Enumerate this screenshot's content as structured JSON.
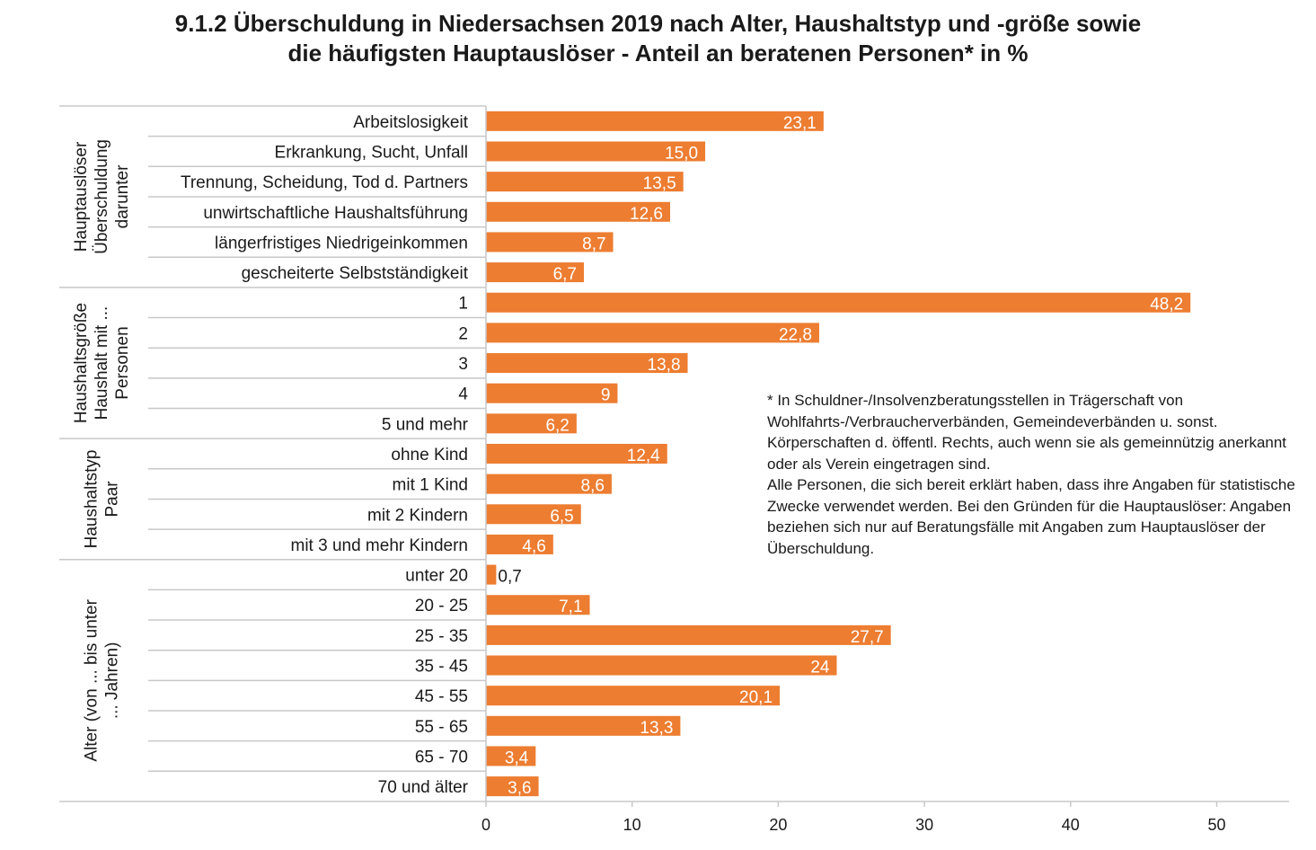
{
  "chart_data": {
    "type": "bar",
    "orientation": "horizontal",
    "title_lines": [
      "9.1.2 Überschuldung in Niedersachsen 2019 nach Alter, Haushaltstyp und -größe sowie",
      "die häufigsten Hauptauslöser - Anteil an beratenen Personen* in %"
    ],
    "groups": [
      {
        "label_lines": [
          "Hauptauslöser",
          "Überschuldung",
          "darunter"
        ],
        "categories": [
          "Arbeitslosigkeit",
          "Erkrankung, Sucht, Unfall",
          "Trennung, Scheidung, Tod d. Partners",
          "unwirtschaftliche Haushaltsführung",
          "längerfristiges Niedrigeinkommen",
          "gescheiterte Selbstständigkeit"
        ],
        "values": [
          23.1,
          15.0,
          13.5,
          12.6,
          8.7,
          6.7
        ],
        "value_labels": [
          "23,1",
          "15,0",
          "13,5",
          "12,6",
          "8,7",
          "6,7"
        ]
      },
      {
        "label_lines": [
          "Haushaltsgröße",
          "Haushalt mit ...",
          "Personen"
        ],
        "categories": [
          "1",
          "2",
          "3",
          "4",
          "5 und mehr"
        ],
        "values": [
          48.2,
          22.8,
          13.8,
          9,
          6.2
        ],
        "value_labels": [
          "48,2",
          "22,8",
          "13,8",
          "9",
          "6,2"
        ]
      },
      {
        "label_lines": [
          "Haushaltstyp",
          "Paar"
        ],
        "categories": [
          "ohne Kind",
          "mit 1 Kind",
          "mit 2 Kindern",
          "mit 3 und mehr Kindern"
        ],
        "values": [
          12.4,
          8.6,
          6.5,
          4.6
        ],
        "value_labels": [
          "12,4",
          "8,6",
          "6,5",
          "4,6"
        ]
      },
      {
        "label_lines": [
          "Alter (von ... bis unter",
          "... Jahren)"
        ],
        "categories": [
          "unter 20",
          "20 - 25",
          "25 - 35",
          "35 - 45",
          "45 - 55",
          "55 - 65",
          "65 - 70",
          "70 und älter"
        ],
        "values": [
          0.7,
          7.1,
          27.7,
          24,
          20.1,
          13.3,
          3.4,
          3.6
        ],
        "value_labels": [
          "0,7",
          "7,1",
          "27,7",
          "24",
          "20,1",
          "13,3",
          "3,4",
          "3,6"
        ]
      }
    ],
    "xlim": [
      0,
      55
    ],
    "xticks": [
      "0",
      "10",
      "20",
      "30",
      "40",
      "50"
    ],
    "xtick_values": [
      0,
      10,
      20,
      30,
      40,
      50
    ],
    "bar_color": "#ED7D31",
    "grid": false
  },
  "footnote": "* In Schuldner-/Insolvenzberatungsstellen in Trägerschaft von Wohlfahrts-/Verbraucherverbänden, Gemeindeverbänden u. sonst. Körperschaften d. öffentl. Rechts, auch wenn sie als gemeinnützig anerkannt oder als Verein eingetragen sind.\nAlle Personen, die sich bereit erklärt haben, dass ihre Angaben für statistische Zwecke verwendet werden. Bei den Gründen für die Hauptauslöser: Angaben beziehen sich nur auf Beratungsfälle mit Angaben zum Hauptauslöser der Überschuldung."
}
